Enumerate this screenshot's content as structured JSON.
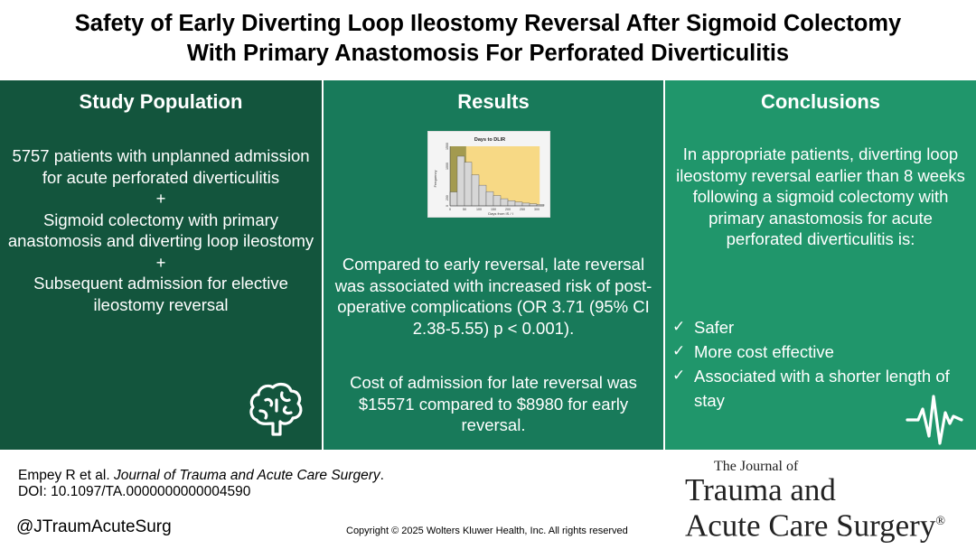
{
  "title": {
    "line1": "Safety of Early Diverting Loop Ileostomy Reversal After Sigmoid Colectomy",
    "line2": "With Primary Anastomosis For Perforated Diverticulitis"
  },
  "study_population": {
    "heading": "Study Population",
    "item1": "5757 patients with unplanned admission for acute perforated diverticulitis",
    "plus1": "+",
    "item2": "Sigmoid colectomy with primary anastomosis and diverting loop ileostomy",
    "plus2": "+",
    "item3": "Subsequent admission for elective ileostomy reversal",
    "icon": "brain-icon"
  },
  "results": {
    "heading": "Results",
    "paragraph1": "Compared to early reversal, late reversal was associated with increased risk of post-operative complications (OR 3.71 (95% CI 2.38-5.55) p < 0.001).",
    "paragraph2": "Cost of admission for late reversal was $15571 compared to $8980 for early reversal."
  },
  "chart_data": {
    "type": "bar",
    "title": "Days to DLIR",
    "xlabel": "Days from IS / I",
    "ylabel": "Frequency",
    "categories": [
      "0-25",
      "25-50",
      "50-75",
      "75-100",
      "100-125",
      "125-150",
      "150-175",
      "175-200",
      "200-225",
      "225-250",
      "250-275",
      "275-300",
      "300-325"
    ],
    "values": [
      350,
      1250,
      1100,
      780,
      520,
      360,
      260,
      180,
      130,
      95,
      70,
      50,
      35
    ],
    "xticks": [
      "0",
      "50",
      "100",
      "150",
      "200",
      "250",
      "300"
    ],
    "yticks": [
      "0",
      "200",
      "1000",
      "1500"
    ],
    "ylim": [
      0,
      1500
    ],
    "shaded_regions": [
      {
        "from": 0,
        "to": 56,
        "color": "#a39a4f"
      },
      {
        "from": 56,
        "to": 310,
        "color": "#f7d985"
      }
    ]
  },
  "conclusions": {
    "heading": "Conclusions",
    "text": "In appropriate patients, diverting loop ileostomy reversal earlier than 8 weeks following a sigmoid colectomy with primary anastomosis for acute perforated diverticulitis is:",
    "check_glyph": "✓",
    "checks": [
      "Safer",
      "More cost effective",
      "Associated with a shorter length of stay"
    ],
    "icon": "heart-pulse-icon"
  },
  "footer": {
    "citation_authors": "Empey R et al. ",
    "citation_journal": "Journal of Trauma and Acute Care Surgery",
    "citation_end": ".",
    "doi": "DOI: 10.1097/TA.0000000000004590",
    "handle": "@JTraumAcuteSurg",
    "copyright": "Copyright © 2025  Wolters Kluwer Health, Inc. All rights reserved"
  },
  "journal_logo": {
    "the": "The Journal of",
    "line1": "Trauma and",
    "line2": "Acute Care Surgery",
    "reg": "®"
  },
  "colors": {
    "left_panel": "#13553d",
    "mid_panel": "#187a5a",
    "right_panel": "#20966b"
  }
}
